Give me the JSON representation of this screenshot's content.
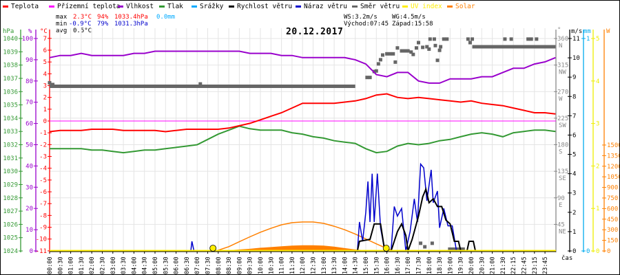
{
  "legend": [
    {
      "label": "Teplota",
      "color": "#ff0000"
    },
    {
      "label": "Přízemní teplota",
      "color": "#ff00ff"
    },
    {
      "label": "Vlhkost",
      "color": "#9900cc"
    },
    {
      "label": "Tlak",
      "color": "#339933"
    },
    {
      "label": "Srážky",
      "color": "#00aaff"
    },
    {
      "label": "Rychlost větru",
      "color": "#000000"
    },
    {
      "label": "Náraz větru",
      "color": "#0000cc"
    },
    {
      "label": "Směr větru",
      "color": "#666666"
    },
    {
      "label": "UV index",
      "color": "#ffee00"
    },
    {
      "label": "Solar",
      "color": "#ff8000"
    }
  ],
  "stats": {
    "max_label": "max",
    "max_temp": "2.3°C",
    "max_hum": "94%",
    "max_press": "1033.4hPa",
    "max_rain": "0.0mm",
    "min_label": "min",
    "min_temp": "-0.9°C",
    "min_hum": "79%",
    "min_press": "1031.3hPa",
    "avg_label": "avg",
    "avg_temp": "0.5°C"
  },
  "wind_info": {
    "ws": "WS:3.2m/s",
    "wg": "WG:4.5m/s",
    "sunrise": "Východ:07:45",
    "sunset": "Západ:15:58"
  },
  "chart_data": {
    "type": "line",
    "title": "20.12.2017",
    "xlabel": "čas",
    "x_ticks": [
      "00:00",
      "00:30",
      "01:00",
      "01:30",
      "02:00",
      "02:30",
      "03:00",
      "03:30",
      "04:00",
      "04:30",
      "05:00",
      "05:30",
      "06:00",
      "06:30",
      "07:00",
      "07:30",
      "08:00",
      "08:30",
      "09:00",
      "09:30",
      "10:00",
      "10:30",
      "11:00",
      "11:30",
      "12:00",
      "12:30",
      "13:00",
      "13:30",
      "14:00",
      "14:30",
      "15:00",
      "15:30",
      "16:00",
      "16:30",
      "17:00",
      "17:30",
      "18:00",
      "18:30",
      "19:00",
      "19:30",
      "20:00",
      "20:30",
      "21:00",
      "21:30",
      "22:15",
      "22:45",
      "23:15",
      "23:45"
    ],
    "grid": true,
    "axes": {
      "pressure": {
        "unit": "hPa",
        "range": [
          1024,
          1040
        ],
        "ticks": [
          "1040",
          "1039",
          "1038",
          "1037",
          "1036",
          "1035",
          "1034",
          "1033",
          "1032",
          "1031",
          "1030",
          "1029",
          "1028",
          "1027",
          "1026",
          "1025",
          "1024"
        ]
      },
      "humidity": {
        "unit": "%",
        "range": [
          0,
          100
        ],
        "ticks": [
          "100",
          "90",
          "80",
          "70",
          "60",
          "50",
          "40",
          "30",
          "20",
          "10",
          "0"
        ]
      },
      "temperature": {
        "unit": "°C",
        "range": [
          -11,
          7
        ],
        "ticks": [
          "7",
          "6",
          "5",
          "4",
          "3",
          "2",
          "1",
          "0",
          "-1",
          "-2",
          "-3",
          "-4",
          "-5",
          "-6",
          "-7",
          "-8",
          "-9",
          "-10",
          "-11"
        ]
      },
      "direction": {
        "unit": "°",
        "range": [
          0,
          360
        ],
        "ticks": [
          {
            "deg": "360",
            "dir": "N"
          },
          {
            "deg": "315",
            "dir": "NW"
          },
          {
            "deg": "270",
            "dir": "W"
          },
          {
            "deg": "225",
            "dir": "SW"
          },
          {
            "deg": "180",
            "dir": "S"
          },
          {
            "deg": "135",
            "dir": "SE"
          },
          {
            "deg": "90",
            "dir": "E"
          },
          {
            "deg": "45",
            "dir": "NE"
          }
        ]
      },
      "wind": {
        "unit": "m/s",
        "range": [
          0,
          11
        ],
        "ticks": [
          "11",
          "10",
          "9",
          "8",
          "7",
          "6",
          "5",
          "4",
          "3",
          "2",
          "1",
          "0"
        ]
      },
      "rain": {
        "unit": "mm",
        "range": [
          0,
          1
        ],
        "ticks": [
          "1",
          "0"
        ]
      },
      "uv": {
        "unit": "",
        "range": [
          0,
          5
        ],
        "ticks": [
          "5",
          "4",
          "3",
          "2",
          "1",
          "0"
        ]
      },
      "solar": {
        "unit": "W",
        "range": [
          0,
          1500
        ],
        "ticks": [
          "1500",
          "1350",
          "1200",
          "1050",
          "900",
          "750",
          "600",
          "450",
          "300",
          "150",
          "0"
        ]
      }
    },
    "hours": [
      0,
      0.5,
      1,
      1.5,
      2,
      2.5,
      3,
      3.5,
      4,
      4.5,
      5,
      5.5,
      6,
      6.5,
      7,
      7.5,
      8,
      8.5,
      9,
      9.5,
      10,
      10.5,
      11,
      11.5,
      12,
      12.5,
      13,
      13.5,
      14,
      14.5,
      15,
      15.5,
      16,
      16.5,
      17,
      17.5,
      18,
      18.5,
      19,
      19.5,
      20,
      20.5,
      21,
      21.5,
      22,
      22.5,
      23,
      23.5,
      24
    ],
    "series": {
      "temperature": [
        -0.9,
        -0.8,
        -0.8,
        -0.8,
        -0.7,
        -0.7,
        -0.7,
        -0.8,
        -0.8,
        -0.8,
        -0.8,
        -0.9,
        -0.8,
        -0.7,
        -0.7,
        -0.7,
        -0.7,
        -0.6,
        -0.4,
        -0.2,
        0.1,
        0.4,
        0.7,
        1.1,
        1.5,
        1.5,
        1.5,
        1.5,
        1.6,
        1.7,
        1.9,
        2.2,
        2.3,
        2.0,
        1.9,
        2.0,
        1.9,
        1.8,
        1.7,
        1.6,
        1.7,
        1.5,
        1.4,
        1.3,
        1.1,
        0.9,
        0.7,
        0.7,
        0.6
      ],
      "humidity": [
        91,
        92,
        92,
        93,
        92,
        92,
        92,
        92,
        93,
        93,
        94,
        94,
        94,
        94,
        94,
        94,
        94,
        94,
        94,
        93,
        93,
        93,
        92,
        92,
        91,
        91,
        91,
        91,
        91,
        90,
        88,
        83,
        82,
        84,
        84,
        80,
        79,
        79,
        81,
        81,
        81,
        82,
        82,
        84,
        86,
        86,
        88,
        89,
        91
      ],
      "pressure": [
        1031.7,
        1031.7,
        1031.7,
        1031.7,
        1031.6,
        1031.6,
        1031.5,
        1031.4,
        1031.5,
        1031.6,
        1031.6,
        1031.7,
        1031.8,
        1031.9,
        1032.0,
        1032.4,
        1032.8,
        1033.1,
        1033.4,
        1033.2,
        1033.1,
        1033.1,
        1033.1,
        1032.9,
        1032.8,
        1032.6,
        1032.5,
        1032.3,
        1032.2,
        1032.1,
        1031.7,
        1031.4,
        1031.5,
        1031.9,
        1032.1,
        1032.0,
        1032.1,
        1032.3,
        1032.4,
        1032.6,
        1032.8,
        1032.9,
        1032.8,
        1032.6,
        1032.9,
        1033.0,
        1033.1,
        1033.1,
        1033.0
      ],
      "ground_temperature": 0,
      "rain": 0,
      "uv": 0,
      "wind_speed": [
        [
          0,
          0
        ],
        [
          14.6,
          0
        ],
        [
          14.7,
          0.5
        ],
        [
          15.2,
          0.6
        ],
        [
          15.4,
          1.4
        ],
        [
          15.7,
          1.4
        ],
        [
          15.9,
          0
        ],
        [
          16.2,
          0
        ],
        [
          16.5,
          1.0
        ],
        [
          16.7,
          1.4
        ],
        [
          16.9,
          0.8
        ],
        [
          17.0,
          0
        ],
        [
          17.2,
          0.6
        ],
        [
          17.5,
          1.8
        ],
        [
          17.7,
          2.8
        ],
        [
          17.85,
          3.2
        ],
        [
          18.0,
          2.5
        ],
        [
          18.2,
          2.7
        ],
        [
          18.4,
          2.3
        ],
        [
          18.6,
          2.3
        ],
        [
          18.8,
          1.6
        ],
        [
          19.0,
          1.4
        ],
        [
          19.2,
          0.5
        ],
        [
          19.4,
          0.5
        ],
        [
          19.5,
          0
        ],
        [
          19.8,
          0
        ],
        [
          19.9,
          0.5
        ],
        [
          20.1,
          0.5
        ],
        [
          20.2,
          0
        ],
        [
          24,
          0
        ]
      ],
      "wind_gust": [
        [
          0,
          0
        ],
        [
          6.7,
          0
        ],
        [
          6.75,
          0.5
        ],
        [
          6.85,
          0
        ],
        [
          14.6,
          0
        ],
        [
          14.7,
          1.5
        ],
        [
          14.85,
          0.5
        ],
        [
          15.0,
          2.0
        ],
        [
          15.1,
          3.6
        ],
        [
          15.2,
          1.5
        ],
        [
          15.3,
          4.0
        ],
        [
          15.4,
          1.5
        ],
        [
          15.55,
          4.0
        ],
        [
          15.7,
          1.2
        ],
        [
          15.9,
          0
        ],
        [
          16.2,
          0
        ],
        [
          16.35,
          2.3
        ],
        [
          16.5,
          1.8
        ],
        [
          16.7,
          2.2
        ],
        [
          16.9,
          0
        ],
        [
          17.1,
          1.0
        ],
        [
          17.3,
          2.7
        ],
        [
          17.45,
          1.5
        ],
        [
          17.6,
          4.5
        ],
        [
          17.75,
          4.3
        ],
        [
          17.9,
          2.6
        ],
        [
          18.1,
          4.2
        ],
        [
          18.2,
          2.5
        ],
        [
          18.4,
          3.1
        ],
        [
          18.5,
          1.2
        ],
        [
          18.7,
          2.2
        ],
        [
          18.9,
          1.3
        ],
        [
          19.1,
          1.3
        ],
        [
          19.3,
          0
        ],
        [
          24,
          0
        ]
      ],
      "solar_theoretical": [
        [
          7.9,
          0
        ],
        [
          8.5,
          60
        ],
        [
          9,
          130
        ],
        [
          9.5,
          200
        ],
        [
          10,
          265
        ],
        [
          10.5,
          320
        ],
        [
          11,
          370
        ],
        [
          11.5,
          400
        ],
        [
          12,
          410
        ],
        [
          12.5,
          410
        ],
        [
          13,
          390
        ],
        [
          13.5,
          350
        ],
        [
          14,
          300
        ],
        [
          14.5,
          240
        ],
        [
          15,
          170
        ],
        [
          15.5,
          100
        ],
        [
          16,
          35
        ],
        [
          16.3,
          0
        ]
      ],
      "solar": [
        [
          8,
          0
        ],
        [
          8.5,
          10
        ],
        [
          9,
          20
        ],
        [
          9.5,
          30
        ],
        [
          10,
          45
        ],
        [
          10.5,
          55
        ],
        [
          11,
          65
        ],
        [
          11.5,
          75
        ],
        [
          12,
          80
        ],
        [
          12.5,
          80
        ],
        [
          13,
          75
        ],
        [
          13.5,
          60
        ],
        [
          14,
          40
        ],
        [
          14.5,
          20
        ],
        [
          15,
          10
        ],
        [
          15.5,
          5
        ],
        [
          16,
          0
        ]
      ],
      "wind_direction": {
        "segments": [
          {
            "start": 0,
            "end": 14.5,
            "deg": 279
          },
          {
            "start": 20.05,
            "end": 24,
            "deg": 346
          },
          {
            "start": 18.9,
            "end": 19.7,
            "deg": 3
          }
        ],
        "points": [
          [
            0,
            285
          ],
          [
            0.15,
            282
          ],
          [
            7.15,
            283
          ],
          [
            15.06,
            294
          ],
          [
            15.2,
            294
          ],
          [
            15.4,
            304
          ],
          [
            15.5,
            305
          ],
          [
            15.6,
            317
          ],
          [
            15.7,
            324
          ],
          [
            15.8,
            332
          ],
          [
            16.0,
            334
          ],
          [
            16.15,
            334
          ],
          [
            16.3,
            334
          ],
          [
            16.4,
            320
          ],
          [
            16.5,
            344
          ],
          [
            16.7,
            339
          ],
          [
            16.85,
            339
          ],
          [
            17.0,
            339
          ],
          [
            17.15,
            337
          ],
          [
            17.25,
            333
          ],
          [
            17.4,
            344
          ],
          [
            17.5,
            353
          ],
          [
            17.7,
            345
          ],
          [
            17.9,
            346
          ],
          [
            18.0,
            342
          ],
          [
            18.05,
            359
          ],
          [
            18.25,
            359
          ],
          [
            18.3,
            348
          ],
          [
            18.4,
            323
          ],
          [
            18.5,
            340
          ],
          [
            18.55,
            346
          ],
          [
            18.7,
            359
          ],
          [
            18.85,
            359
          ],
          [
            17.6,
            13
          ],
          [
            17.8,
            7
          ],
          [
            18.15,
            13
          ],
          [
            19.85,
            359
          ],
          [
            20.05,
            359
          ],
          [
            19.95,
            353
          ],
          [
            21.6,
            359
          ],
          [
            21.9,
            359
          ],
          [
            22.7,
            359
          ],
          [
            22.85,
            359
          ],
          [
            23.1,
            359
          ]
        ]
      },
      "sun_events_hours": [
        7.75,
        15.97
      ]
    }
  }
}
